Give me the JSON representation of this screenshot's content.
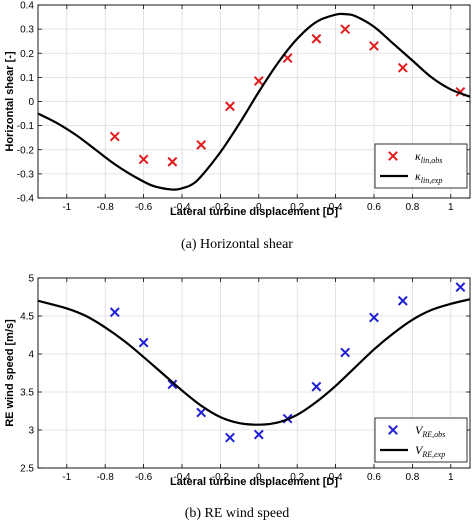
{
  "chart_data": [
    {
      "type": "scatter",
      "xlabel": "Lateral turbine displacement [D]",
      "ylabel": "Horizontal shear [-]",
      "caption": "(a) Horizontal shear",
      "xlim": [
        -1.15,
        1.1
      ],
      "ylim": [
        -0.4,
        0.4
      ],
      "xticks": [
        "-1",
        "-0.8",
        "-0.6",
        "-0.4",
        "-0.2",
        "0",
        "0.2",
        "0.4",
        "0.6",
        "0.8",
        "1"
      ],
      "yticks": [
        "-0.4",
        "-0.3",
        "-0.2",
        "-0.1",
        "0",
        "0.1",
        "0.2",
        "0.3",
        "0.4"
      ],
      "grid": true,
      "legend_position": "bottom-right",
      "series": [
        {
          "name": "κ_lin,obs",
          "legend_symbol": "κ",
          "legend_sub": "lin,obs",
          "kind": "markers",
          "marker": "x",
          "color": "#e41a1c",
          "x": [
            -0.75,
            -0.6,
            -0.45,
            -0.3,
            -0.15,
            0.0,
            0.15,
            0.3,
            0.45,
            0.6,
            0.75,
            1.05
          ],
          "y": [
            -0.145,
            -0.24,
            -0.25,
            -0.18,
            -0.02,
            0.085,
            0.18,
            0.26,
            0.3,
            0.23,
            0.14,
            0.04
          ]
        },
        {
          "name": "κ_lin,exp",
          "legend_symbol": "κ",
          "legend_sub": "lin,exp",
          "kind": "line",
          "color": "#000000",
          "x": [
            -1.15,
            -1.05,
            -0.95,
            -0.85,
            -0.75,
            -0.65,
            -0.55,
            -0.45,
            -0.4,
            -0.35,
            -0.3,
            -0.2,
            -0.1,
            0.0,
            0.1,
            0.2,
            0.3,
            0.4,
            0.45,
            0.5,
            0.6,
            0.7,
            0.8,
            0.9,
            1.0,
            1.1
          ],
          "y": [
            -0.05,
            -0.09,
            -0.14,
            -0.2,
            -0.26,
            -0.31,
            -0.35,
            -0.365,
            -0.36,
            -0.345,
            -0.31,
            -0.21,
            -0.09,
            0.04,
            0.16,
            0.26,
            0.33,
            0.36,
            0.362,
            0.355,
            0.31,
            0.24,
            0.17,
            0.1,
            0.05,
            0.02
          ]
        }
      ]
    },
    {
      "type": "scatter",
      "xlabel": "Lateral turbine displacement [D]",
      "ylabel": "RE wind speed [m/s]",
      "caption": "(b) RE wind speed",
      "xlim": [
        -1.15,
        1.1
      ],
      "ylim": [
        2.5,
        5
      ],
      "xticks": [
        "-1",
        "-0.8",
        "-0.6",
        "-0.4",
        "-0.2",
        "0",
        "0.2",
        "0.4",
        "0.6",
        "0.8",
        "1"
      ],
      "yticks": [
        "2.5",
        "3",
        "3.5",
        "4",
        "4.5",
        "5"
      ],
      "grid": true,
      "legend_position": "bottom-right",
      "series": [
        {
          "name": "V_RE,obs",
          "legend_symbol": "V",
          "legend_sub": "RE,obs",
          "kind": "markers",
          "marker": "x",
          "color": "#1f1fd6",
          "x": [
            -0.75,
            -0.6,
            -0.45,
            -0.3,
            -0.15,
            0.0,
            0.15,
            0.3,
            0.45,
            0.6,
            0.75,
            1.05
          ],
          "y": [
            4.55,
            4.15,
            3.6,
            3.23,
            2.9,
            2.94,
            3.15,
            3.57,
            4.02,
            4.48,
            4.7,
            4.88
          ]
        },
        {
          "name": "V_RE,exp",
          "legend_symbol": "V",
          "legend_sub": "RE,exp",
          "kind": "line",
          "color": "#000000",
          "x": [
            -1.15,
            -1.0,
            -0.9,
            -0.8,
            -0.7,
            -0.6,
            -0.5,
            -0.4,
            -0.3,
            -0.2,
            -0.1,
            0.0,
            0.1,
            0.2,
            0.3,
            0.4,
            0.5,
            0.6,
            0.7,
            0.8,
            0.9,
            1.0,
            1.1
          ],
          "y": [
            4.7,
            4.6,
            4.5,
            4.35,
            4.17,
            3.96,
            3.74,
            3.52,
            3.32,
            3.17,
            3.09,
            3.07,
            3.1,
            3.2,
            3.37,
            3.58,
            3.82,
            4.06,
            4.27,
            4.45,
            4.58,
            4.66,
            4.72
          ]
        }
      ]
    }
  ]
}
